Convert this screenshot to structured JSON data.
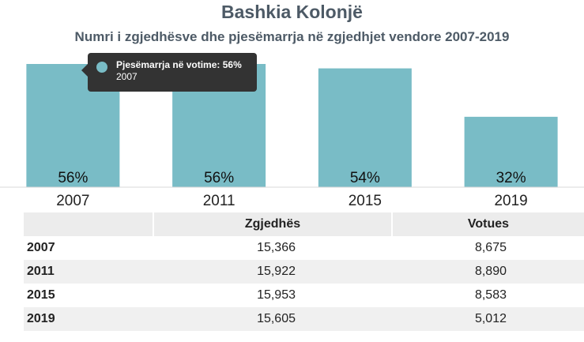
{
  "title": "Bashkia Kolonjë",
  "subtitle": "Numri i zgjedhësve dhe pjesëmarrja në zgjedhjet vendore 2007-2019",
  "chart_data": {
    "type": "bar",
    "categories": [
      "2007",
      "2011",
      "2015",
      "2019"
    ],
    "values": [
      56,
      56,
      54,
      32
    ],
    "data_labels": [
      "56%",
      "56%",
      "54%",
      "32%"
    ],
    "title": "Bashkia Kolonjë",
    "subtitle": "Numri i zgjedhësve dhe pjesëmarrja në zgjedhjet vendore 2007-2019",
    "xlabel": "",
    "ylabel": "",
    "ylim": [
      0,
      60
    ],
    "grid": false,
    "bar_color": "#79bcc6"
  },
  "tooltip": {
    "label": "Pjesëmarrja në votime: 56%",
    "year": "2007"
  },
  "table": {
    "headers": [
      "",
      "Zgjedhës",
      "Votues"
    ],
    "rows": [
      {
        "year": "2007",
        "zgjedhes": "15,366",
        "votues": "8,675"
      },
      {
        "year": "2011",
        "zgjedhes": "15,922",
        "votues": "8,890"
      },
      {
        "year": "2015",
        "zgjedhes": "15,953",
        "votues": "8,583"
      },
      {
        "year": "2019",
        "zgjedhes": "15,605",
        "votues": "5,012"
      }
    ]
  }
}
